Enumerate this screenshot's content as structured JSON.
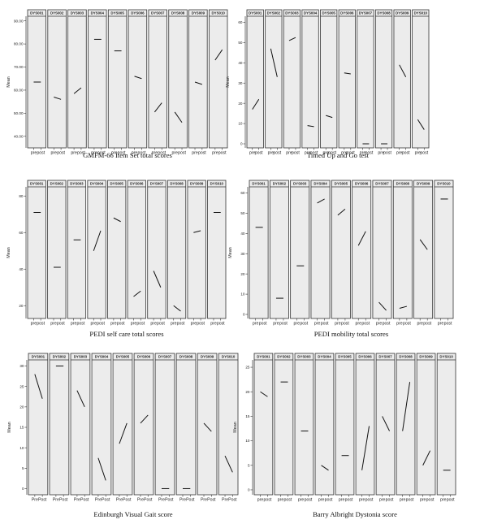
{
  "chart_data": [
    {
      "type": "line",
      "title": "GMFM-66 Item Set total scores",
      "ylabel": "Mean",
      "ylim": [
        35,
        92
      ],
      "yticks": [
        40,
        50,
        60,
        70,
        80,
        90
      ],
      "ytick_labels": [
        "40.00",
        "50.00",
        "60.00",
        "70.00",
        "80.00",
        "90.00"
      ],
      "xtick_labels": [
        "pre",
        "post"
      ],
      "series": [
        {
          "name": "DYS001",
          "values": [
            63.5,
            63.5
          ]
        },
        {
          "name": "DYS002",
          "values": [
            57.0,
            56.0
          ]
        },
        {
          "name": "DYS003",
          "values": [
            58.5,
            61.0
          ]
        },
        {
          "name": "DYS004",
          "values": [
            82.0,
            82.0
          ]
        },
        {
          "name": "DYS005",
          "values": [
            77.0,
            77.0
          ]
        },
        {
          "name": "DYS006",
          "values": [
            66.0,
            65.0
          ]
        },
        {
          "name": "DYS007",
          "values": [
            50.5,
            54.5
          ]
        },
        {
          "name": "DYS008",
          "values": [
            50.5,
            46.0
          ]
        },
        {
          "name": "DYS009",
          "values": [
            63.5,
            62.5
          ]
        },
        {
          "name": "DYS010",
          "values": [
            73.0,
            77.5
          ]
        }
      ]
    },
    {
      "type": "line",
      "title": "Timed Up and Go test",
      "ylabel": "Mean",
      "ylim": [
        -2,
        63
      ],
      "yticks": [
        0,
        10,
        20,
        30,
        40,
        50,
        60
      ],
      "ytick_labels": [
        "0",
        "10",
        "20",
        "30",
        "40",
        "50",
        "60"
      ],
      "xtick_labels": [
        "pre",
        "post"
      ],
      "series": [
        {
          "name": "DYS001",
          "values": [
            17.0,
            22.0
          ]
        },
        {
          "name": "DYS002",
          "values": [
            47.0,
            33.0
          ]
        },
        {
          "name": "DYS003",
          "values": [
            51.0,
            52.5
          ]
        },
        {
          "name": "DYS004",
          "values": [
            9.0,
            8.5
          ]
        },
        {
          "name": "DYS005",
          "values": [
            14.0,
            13.0
          ]
        },
        {
          "name": "DYS006",
          "values": [
            35.0,
            34.5
          ]
        },
        {
          "name": "DYS007",
          "values": [
            0.0,
            0.0
          ]
        },
        {
          "name": "DYS008",
          "values": [
            0.0,
            0.0
          ]
        },
        {
          "name": "DYS009",
          "values": [
            39.0,
            33.0
          ]
        },
        {
          "name": "DYS010",
          "values": [
            12.0,
            7.0
          ]
        }
      ]
    },
    {
      "type": "line",
      "title": "PEDI self care total scores",
      "ylabel": "Mean",
      "ylim": [
        13,
        85
      ],
      "yticks": [
        20,
        40,
        60,
        80
      ],
      "ytick_labels": [
        "20",
        "40",
        "60",
        "80"
      ],
      "xtick_labels": [
        "pre",
        "post"
      ],
      "series": [
        {
          "name": "DYS001",
          "values": [
            71.0,
            71.0
          ]
        },
        {
          "name": "DYS002",
          "values": [
            41.0,
            41.0
          ]
        },
        {
          "name": "DYS003",
          "values": [
            56.0,
            56.0
          ]
        },
        {
          "name": "DYS004",
          "values": [
            50.0,
            61.0
          ]
        },
        {
          "name": "DYS005",
          "values": [
            68.0,
            66.0
          ]
        },
        {
          "name": "DYS006",
          "values": [
            25.0,
            28.0
          ]
        },
        {
          "name": "DYS007",
          "values": [
            39.0,
            30.0
          ]
        },
        {
          "name": "DYS008",
          "values": [
            20.0,
            17.0
          ]
        },
        {
          "name": "DYS009",
          "values": [
            60.0,
            61.0
          ]
        },
        {
          "name": "DYS010",
          "values": [
            71.0,
            71.0
          ]
        }
      ]
    },
    {
      "type": "line",
      "title": "PEDI mobility total scores",
      "ylabel": "Mean",
      "ylim": [
        -2,
        63
      ],
      "yticks": [
        0,
        10,
        20,
        30,
        40,
        50,
        60
      ],
      "ytick_labels": [
        "0",
        "10",
        "20",
        "30",
        "40",
        "50",
        "60"
      ],
      "xtick_labels": [
        "pre",
        "post"
      ],
      "series": [
        {
          "name": "DYS001",
          "values": [
            43.0,
            43.0
          ]
        },
        {
          "name": "DYS002",
          "values": [
            8.0,
            8.0
          ]
        },
        {
          "name": "DYS003",
          "values": [
            24.0,
            24.0
          ]
        },
        {
          "name": "DYS004",
          "values": [
            55.0,
            57.0
          ]
        },
        {
          "name": "DYS005",
          "values": [
            49.0,
            52.0
          ]
        },
        {
          "name": "DYS006",
          "values": [
            34.0,
            41.0
          ]
        },
        {
          "name": "DYS007",
          "values": [
            6.0,
            2.0
          ]
        },
        {
          "name": "DYS008",
          "values": [
            3.0,
            4.0
          ]
        },
        {
          "name": "DYS009",
          "values": [
            37.0,
            32.0
          ]
        },
        {
          "name": "DYS010",
          "values": [
            57.0,
            57.0
          ]
        }
      ]
    },
    {
      "type": "line",
      "title": "Edinburgh Visual Gait score",
      "ylabel": "Mean",
      "ylim": [
        -1.5,
        31.5
      ],
      "yticks": [
        0,
        5,
        10,
        15,
        20,
        25,
        30
      ],
      "ytick_labels": [
        "0",
        "5",
        "10",
        "15",
        "20",
        "25",
        "30"
      ],
      "xtick_labels": [
        "Pre",
        "Post"
      ],
      "series": [
        {
          "name": "DYS001",
          "values": [
            28.0,
            22.0
          ]
        },
        {
          "name": "DYS002",
          "values": [
            30.0,
            30.0
          ]
        },
        {
          "name": "DYS003",
          "values": [
            24.0,
            20.0
          ]
        },
        {
          "name": "DYS004",
          "values": [
            7.5,
            2.0
          ]
        },
        {
          "name": "DYS005",
          "values": [
            11.0,
            16.0
          ]
        },
        {
          "name": "DYS006",
          "values": [
            16.0,
            18.0
          ]
        },
        {
          "name": "DYS007",
          "values": [
            0.0,
            0.0
          ]
        },
        {
          "name": "DYS008",
          "values": [
            0.0,
            0.0
          ]
        },
        {
          "name": "DYS009",
          "values": [
            16.0,
            14.0
          ]
        },
        {
          "name": "DYS010",
          "values": [
            8.0,
            4.0
          ]
        }
      ]
    },
    {
      "type": "line",
      "title": "Barry Albright Dystonia score",
      "ylabel": "Mean",
      "ylim": [
        -1,
        26.5
      ],
      "yticks": [
        0,
        5,
        10,
        15,
        20,
        25
      ],
      "ytick_labels": [
        "0",
        "5",
        "10",
        "15",
        "20",
        "25"
      ],
      "xtick_labels": [
        "pre",
        "post"
      ],
      "series": [
        {
          "name": "DYS001",
          "values": [
            20.0,
            19.0
          ]
        },
        {
          "name": "DYS002",
          "values": [
            22.0,
            22.0
          ]
        },
        {
          "name": "DYS003",
          "values": [
            12.0,
            12.0
          ]
        },
        {
          "name": "DYS004",
          "values": [
            5.0,
            4.0
          ]
        },
        {
          "name": "DYS005",
          "values": [
            7.0,
            7.0
          ]
        },
        {
          "name": "DYS006",
          "values": [
            4.0,
            13.0
          ]
        },
        {
          "name": "DYS007",
          "values": [
            15.0,
            12.0
          ]
        },
        {
          "name": "DYS008",
          "values": [
            12.0,
            22.0
          ]
        },
        {
          "name": "DYS009",
          "values": [
            5.0,
            8.0
          ]
        },
        {
          "name": "DYS010",
          "values": [
            4.0,
            4.0
          ]
        }
      ]
    }
  ]
}
